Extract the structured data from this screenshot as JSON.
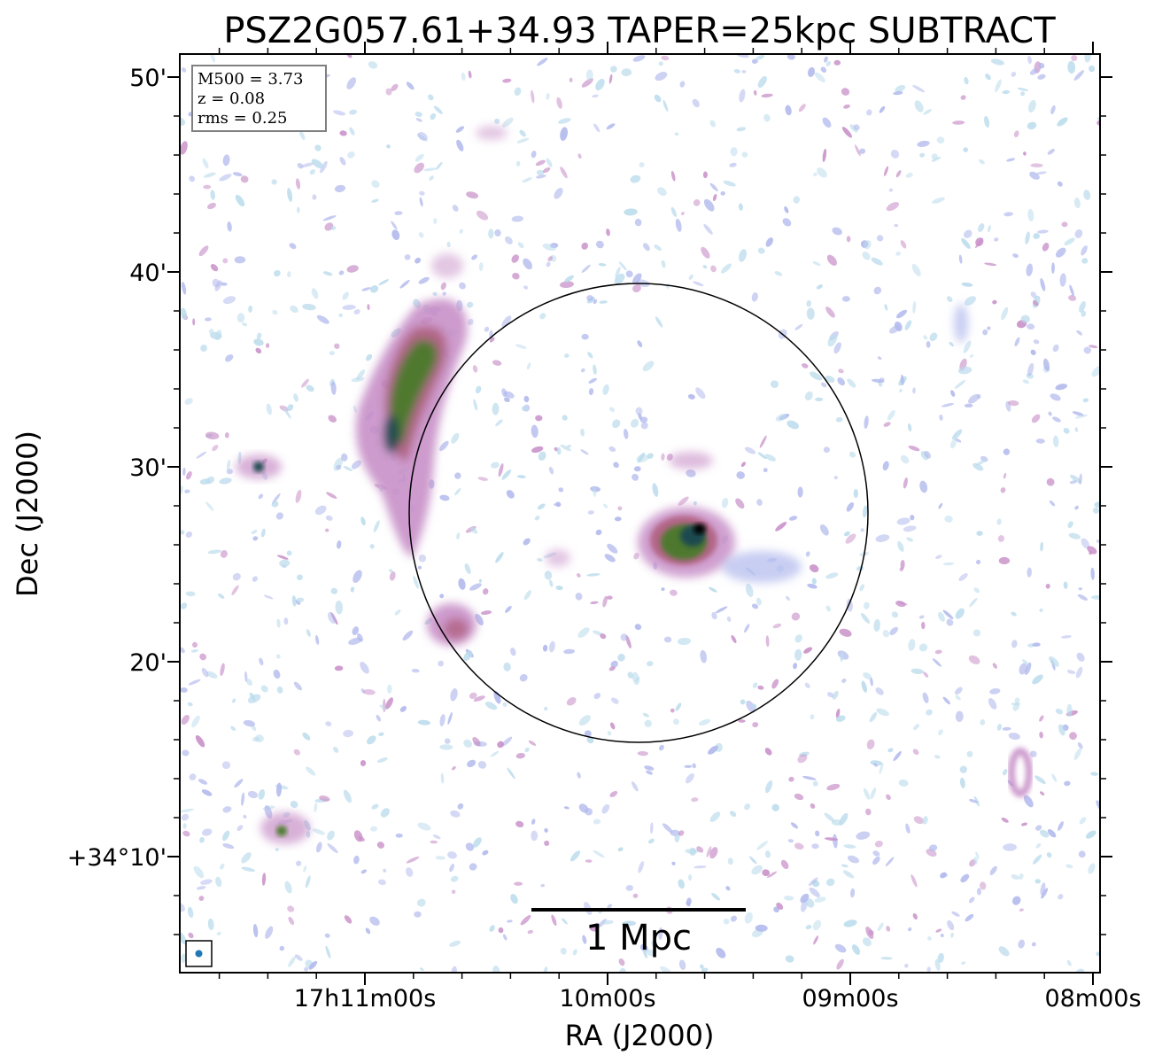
{
  "chart_data": {
    "type": "heatmap",
    "title": "PSZ2G057.61+34.93 TAPER=25kpc SUBTRACT",
    "xlabel": "RA (J2000)",
    "ylabel": "Dec (J2000)",
    "x_ticks": [
      "17h11m00s",
      "10m00s",
      "09m00s",
      "08m00s"
    ],
    "y_ticks": [
      "50'",
      "40'",
      "30'",
      "20'",
      "+34°10'"
    ],
    "info": [
      "M500 = 3.73",
      "z = 0.08",
      "rms = 0.25"
    ],
    "scale_bar_label": "1 Mpc",
    "colormap": [
      "#ffffff",
      "#bcdcec",
      "#b0b8ec",
      "#c890c8",
      "#b06080",
      "#4a7a2a",
      "#1a4a50",
      "#000000"
    ],
    "sources": [
      {
        "name": "western-relic",
        "ra_min": 10.9,
        "dec_arcmin": 31.5,
        "peak": 0.9
      },
      {
        "name": "central-source",
        "ra_min": 9.6,
        "dec_arcmin": 25.8,
        "peak": 1.0
      },
      {
        "name": "south-west-patch",
        "ra_min": 10.7,
        "dec_arcmin": 21.2,
        "peak": 0.5
      },
      {
        "name": "point-source-west",
        "ra_min": 11.5,
        "dec_arcmin": 30.0,
        "peak": 0.8
      },
      {
        "name": "point-source-southwest",
        "ra_min": 11.4,
        "dec_arcmin": 11.5,
        "peak": 0.8
      },
      {
        "name": "east-loop",
        "ra_min": 8.3,
        "dec_arcmin": 14.2,
        "peak": 0.45
      }
    ]
  }
}
